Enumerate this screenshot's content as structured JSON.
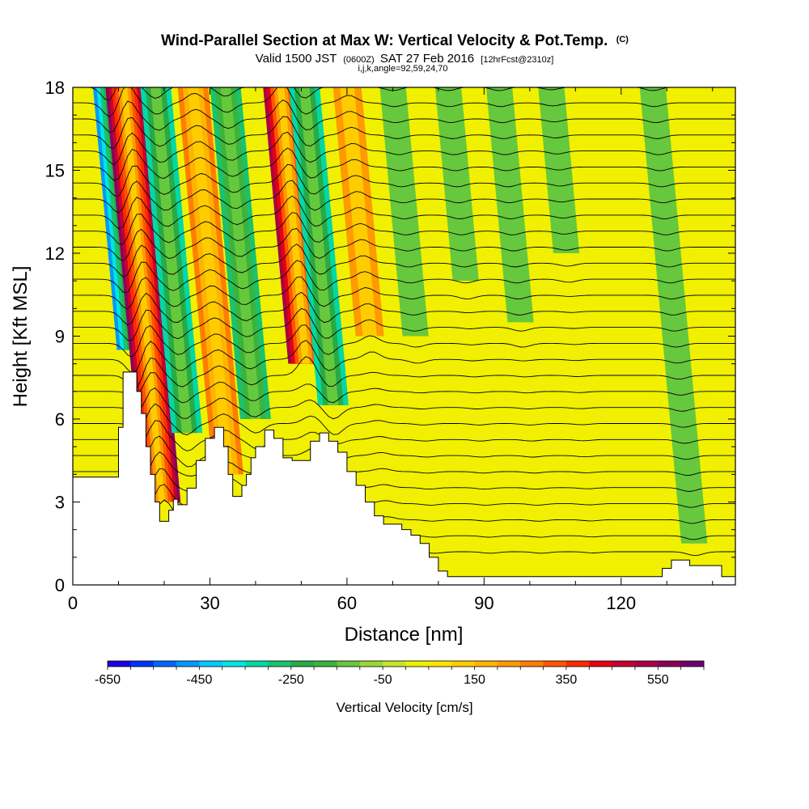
{
  "header": {
    "title_main": "Wind-Parallel Section at Max W: Vertical Velocity & Pot.Temp.",
    "title_tag": "(C)",
    "subtitle_a": "Valid 1500 JST",
    "subtitle_b": "(0600Z)",
    "subtitle_c": "SAT 27 Feb 2016",
    "subtitle_d": "[12hrFcst@2310z]",
    "indices": "i,j,k,angle=92,59,24,70"
  },
  "chart_data": {
    "type": "heatmap",
    "xlabel": "Distance [nm]",
    "ylabel": "Height [Kft MSL]",
    "xlim": [
      0,
      145
    ],
    "ylim": [
      0,
      18
    ],
    "x_ticks": [
      "0",
      "30",
      "60",
      "90",
      "120"
    ],
    "y_ticks": [
      "0",
      "3",
      "6",
      "9",
      "12",
      "15",
      "18"
    ],
    "terrain": {
      "x": [
        0,
        8,
        10,
        11,
        12,
        14,
        15,
        16,
        17,
        18,
        19,
        20,
        21,
        22,
        23,
        25,
        27,
        29,
        31,
        32,
        33,
        34,
        35,
        36,
        37,
        38,
        39,
        40,
        42,
        44,
        46,
        48,
        50,
        52,
        54,
        56,
        58,
        60,
        62,
        64,
        66,
        68,
        70,
        72,
        74,
        76,
        78,
        80,
        82,
        84,
        86,
        88,
        90,
        100,
        110,
        120,
        126,
        129,
        131,
        133,
        135,
        139,
        142,
        145
      ],
      "height": [
        3.9,
        3.9,
        5.7,
        7.7,
        7.7,
        7.0,
        6.2,
        5.0,
        4.0,
        3.0,
        2.3,
        2.3,
        2.7,
        3.1,
        2.9,
        3.5,
        4.5,
        5.3,
        5.7,
        5.7,
        5.0,
        4.0,
        3.2,
        3.2,
        3.6,
        4.0,
        4.6,
        5.0,
        5.6,
        5.3,
        4.6,
        4.5,
        4.5,
        5.2,
        5.5,
        5.2,
        4.8,
        4.1,
        3.6,
        3.0,
        2.5,
        2.2,
        2.2,
        2.0,
        1.8,
        1.5,
        1.0,
        0.5,
        0.3,
        0.3,
        0.3,
        0.3,
        0.3,
        0.3,
        0.3,
        0.3,
        0.3,
        0.6,
        0.9,
        0.9,
        0.7,
        0.7,
        0.3,
        0.3
      ]
    },
    "vertical_velocity_bands": [
      {
        "x": 13.5,
        "base": 8.5,
        "value": -450
      },
      {
        "x": 19.5,
        "base": 3.0,
        "value": 550
      },
      {
        "x": 25.0,
        "base": 5.5,
        "value": -300
      },
      {
        "x": 34.0,
        "base": 4.0,
        "value": 250
      },
      {
        "x": 40.0,
        "base": 6.0,
        "value": -250
      },
      {
        "x": 51.0,
        "base": 8.0,
        "value": 500
      },
      {
        "x": 57.0,
        "base": 6.5,
        "value": -300
      },
      {
        "x": 65.0,
        "base": 9.0,
        "value": 200
      },
      {
        "x": 75.0,
        "base": 9.0,
        "value": -100
      },
      {
        "x": 86.0,
        "base": 11.0,
        "value": -100
      },
      {
        "x": 98.0,
        "base": 9.5,
        "value": -100
      },
      {
        "x": 108.0,
        "base": 12.0,
        "value": -80
      },
      {
        "x": 136.0,
        "base": 1.5,
        "value": -100
      }
    ],
    "theta_contour_count": 32,
    "colorbar": {
      "label": "Vertical Velocity [cm/s]",
      "min": -650,
      "max": 650,
      "step": 50,
      "tick_labels": [
        "-650",
        "-450",
        "-250",
        "-50",
        "150",
        "350",
        "550"
      ],
      "colors": [
        "#1a00e6",
        "#0033ff",
        "#0066ff",
        "#0099ff",
        "#00ccff",
        "#00e6e6",
        "#00d9a6",
        "#19c36e",
        "#28ab46",
        "#3cb43c",
        "#66c83c",
        "#9bd836",
        "#c8e628",
        "#f0f000",
        "#ffe600",
        "#ffcc00",
        "#ffb400",
        "#ff9a00",
        "#ff7d00",
        "#ff5500",
        "#ff2a00",
        "#e60014",
        "#c80032",
        "#aa0046",
        "#8c005a",
        "#6e006e"
      ]
    }
  }
}
